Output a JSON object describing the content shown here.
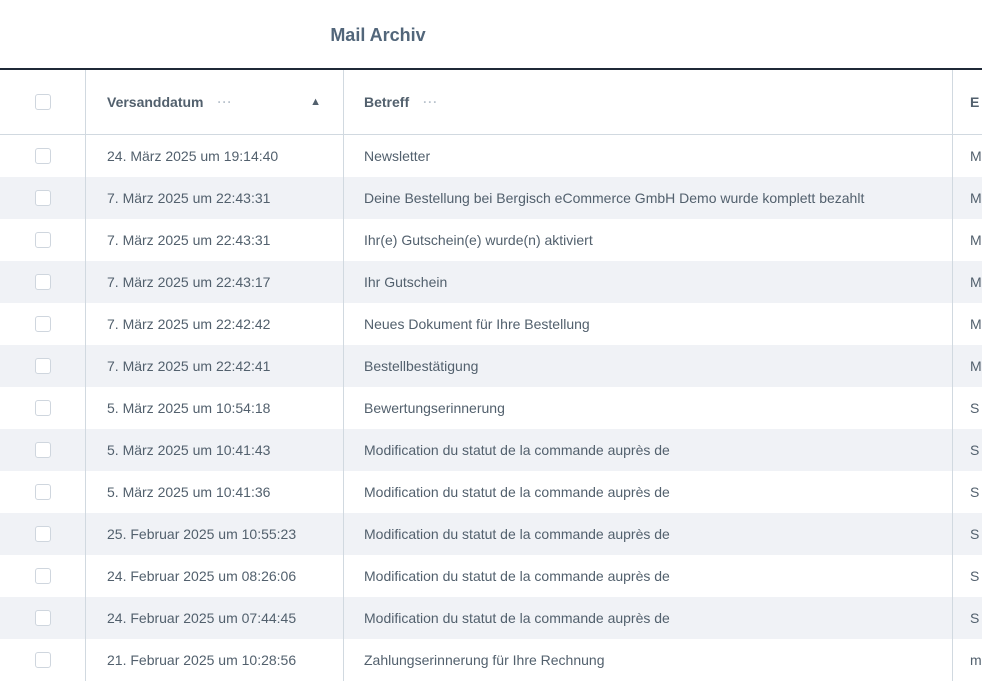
{
  "title": "Mail Archiv",
  "columns": {
    "date": "Versanddatum",
    "subject": "Betreff",
    "fourth": "E",
    "more_icon": "ellipsis-icon",
    "sort_icon": "chevron-up-icon"
  },
  "rows": [
    {
      "date": "24. März 2025 um 19:14:40",
      "subject": "Newsletter",
      "fourth": "M"
    },
    {
      "date": "7. März 2025 um 22:43:31",
      "subject": "Deine Bestellung bei Bergisch eCommerce GmbH Demo wurde komplett bezahlt",
      "fourth": "M"
    },
    {
      "date": "7. März 2025 um 22:43:31",
      "subject": "Ihr(e) Gutschein(e) wurde(n) aktiviert",
      "fourth": "M"
    },
    {
      "date": "7. März 2025 um 22:43:17",
      "subject": "Ihr Gutschein",
      "fourth": "M"
    },
    {
      "date": "7. März 2025 um 22:42:42",
      "subject": "Neues Dokument für Ihre Bestellung",
      "fourth": "M"
    },
    {
      "date": "7. März 2025 um 22:42:41",
      "subject": "Bestellbestätigung",
      "fourth": "M"
    },
    {
      "date": "5. März 2025 um 10:54:18",
      "subject": "Bewertungserinnerung",
      "fourth": "S"
    },
    {
      "date": "5. März 2025 um 10:41:43",
      "subject": "Modification du statut de la commande auprès de",
      "fourth": "S"
    },
    {
      "date": "5. März 2025 um 10:41:36",
      "subject": "Modification du statut de la commande auprès de",
      "fourth": "S"
    },
    {
      "date": "25. Februar 2025 um 10:55:23",
      "subject": "Modification du statut de la commande auprès de",
      "fourth": "S"
    },
    {
      "date": "24. Februar 2025 um 08:26:06",
      "subject": "Modification du statut de la commande auprès de",
      "fourth": "S"
    },
    {
      "date": "24. Februar 2025 um 07:44:45",
      "subject": "Modification du statut de la commande auprès de",
      "fourth": "S"
    },
    {
      "date": "21. Februar 2025 um 10:28:56",
      "subject": "Zahlungserinnerung für Ihre Rechnung",
      "fourth": "m"
    }
  ]
}
